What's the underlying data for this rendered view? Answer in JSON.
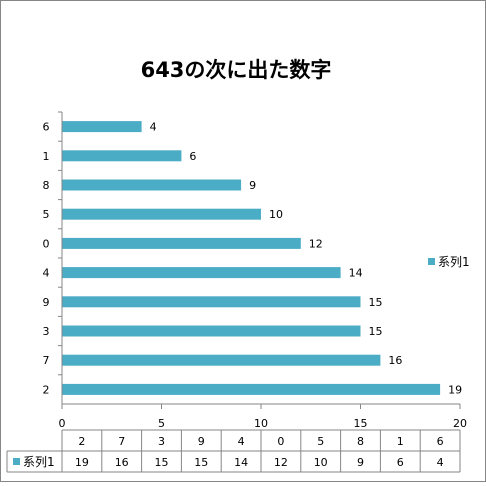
{
  "chart_data": {
    "type": "bar",
    "orientation": "horizontal",
    "title": "643の次に出た数字",
    "categories": [
      "6",
      "1",
      "8",
      "5",
      "0",
      "4",
      "9",
      "3",
      "7",
      "2"
    ],
    "series": [
      {
        "name": "系列1",
        "values": [
          4,
          6,
          9,
          10,
          12,
          14,
          15,
          15,
          16,
          19
        ],
        "color": "#4BACC6"
      }
    ],
    "xlim": [
      0,
      20
    ],
    "xticks": [
      0,
      5,
      10,
      15,
      20
    ],
    "grid": false,
    "legend_position": "right",
    "data_table": {
      "categories": [
        "2",
        "7",
        "3",
        "9",
        "4",
        "0",
        "5",
        "8",
        "1",
        "6"
      ],
      "series_label": "系列1",
      "values": [
        19,
        16,
        15,
        15,
        14,
        12,
        10,
        9,
        6,
        4
      ]
    }
  },
  "colors": {
    "bar": "#4BACC6",
    "axis": "#868686",
    "border": "#868686"
  }
}
